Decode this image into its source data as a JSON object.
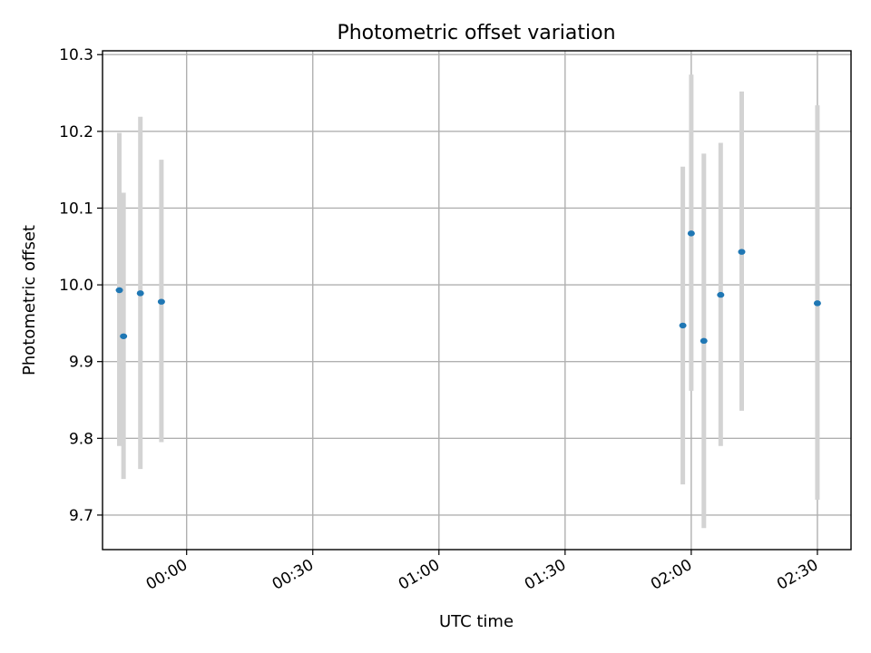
{
  "chart_data": {
    "type": "scatter",
    "title": "Photometric offset variation",
    "xlabel": "UTC time",
    "ylabel": "Photometric offset",
    "x_unit": "time HH:MM (UTC)",
    "xlim": [
      "23:40",
      "02:38"
    ],
    "ylim": [
      9.655,
      10.305
    ],
    "grid": true,
    "colors": {
      "point": "#1f77b4",
      "errorbar": "#d3d3d3"
    },
    "xticks": [
      "00:00",
      "00:30",
      "01:00",
      "01:30",
      "02:00",
      "02:30"
    ],
    "yticks": [
      "9.7",
      "9.8",
      "9.9",
      "10.0",
      "10.1",
      "10.2",
      "10.3"
    ],
    "points": [
      {
        "time": "23:44",
        "y": 9.993,
        "yerr_low": 9.79,
        "yerr_high": 10.198
      },
      {
        "time": "23:45",
        "y": 9.933,
        "yerr_low": 9.747,
        "yerr_high": 10.12
      },
      {
        "time": "23:49",
        "y": 9.989,
        "yerr_low": 9.76,
        "yerr_high": 10.219
      },
      {
        "time": "23:54",
        "y": 9.978,
        "yerr_low": 9.795,
        "yerr_high": 10.163
      },
      {
        "time": "01:58",
        "y": 9.947,
        "yerr_low": 9.74,
        "yerr_high": 10.154
      },
      {
        "time": "02:00",
        "y": 10.067,
        "yerr_low": 9.862,
        "yerr_high": 10.274
      },
      {
        "time": "02:03",
        "y": 9.927,
        "yerr_low": 9.683,
        "yerr_high": 10.171
      },
      {
        "time": "02:07",
        "y": 9.987,
        "yerr_low": 9.79,
        "yerr_high": 10.185
      },
      {
        "time": "02:12",
        "y": 10.043,
        "yerr_low": 9.836,
        "yerr_high": 10.252
      },
      {
        "time": "02:30",
        "y": 9.976,
        "yerr_low": 9.72,
        "yerr_high": 10.234
      }
    ]
  }
}
